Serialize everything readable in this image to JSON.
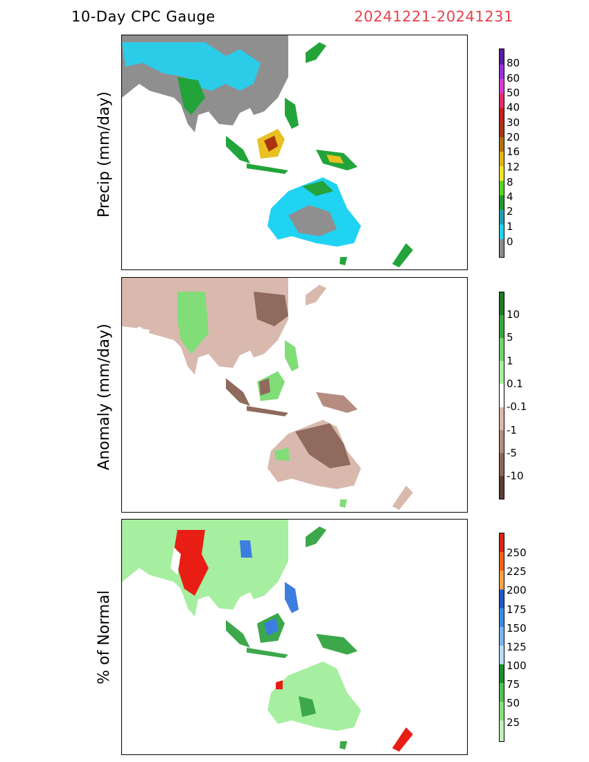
{
  "header": {
    "title": "10-Day CPC Gauge",
    "date_range": "20241221-20241231",
    "date_color": "#e8404a"
  },
  "panels": [
    {
      "id": "precip",
      "ylabel": "Precip (mm/day)",
      "colorbar": {
        "labels": [
          "80",
          "60",
          "50",
          "40",
          "30",
          "20",
          "16",
          "12",
          "8",
          "4",
          "2",
          "1",
          "0"
        ],
        "colors": [
          "#5a1aa6",
          "#9a2ce0",
          "#d93bd0",
          "#e62a66",
          "#c81e1e",
          "#a83410",
          "#b46f10",
          "#e2b414",
          "#f0e42a",
          "#5ad41e",
          "#209a32",
          "#1ea0b4",
          "#1ed2f0",
          "#8c8c8c"
        ]
      },
      "map_style": {
        "land": "#8f8f8f",
        "wet": "#20d3f2",
        "moist": "#22a43a",
        "rain": "#e8c020"
      }
    },
    {
      "id": "anomaly",
      "ylabel": "Anomaly (mm/day)",
      "colorbar": {
        "labels": [
          "10",
          "5",
          "1",
          "0.1",
          "-0.1",
          "-1",
          "-5",
          "-10"
        ],
        "colors": [
          "#1e7a28",
          "#36a83c",
          "#6ed46a",
          "#a8eea0",
          "#ffffff",
          "#dcb8ac",
          "#b48c80",
          "#8c6658",
          "#5e3c34"
        ]
      },
      "map_style": {
        "land": "#d9b9ae",
        "dry": "#8f6a5d",
        "wet": "#80dd78"
      }
    },
    {
      "id": "percent",
      "ylabel": "% of Normal",
      "colorbar": {
        "labels": [
          "250",
          "225",
          "200",
          "175",
          "150",
          "125",
          "100",
          "75",
          "50",
          "25"
        ],
        "colors": [
          "#dc2410",
          "#f06414",
          "#f8a23c",
          "#1e58c8",
          "#3c8ae6",
          "#78b4f0",
          "#b8dcf8",
          "#1c8c2c",
          "#50c050",
          "#88de7a",
          "#c2f0b4"
        ]
      },
      "map_style": {
        "land": "#a6eea0",
        "high": "#e81e14",
        "mid": "#3ca84a",
        "blue": "#3c7ee0"
      }
    }
  ]
}
